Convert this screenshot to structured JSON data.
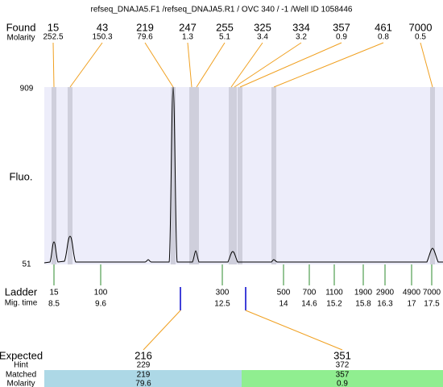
{
  "title": "refseq_DNAJA5.F1 /refseq_DNAJA5.R1 / OVC 340 / -1 /Well ID 1058446",
  "found": {
    "label": "Found",
    "molarity_label": "Molarity",
    "peaks": [
      {
        "size": 15,
        "molarity": 252.5
      },
      {
        "size": 43,
        "molarity": 150.3
      },
      {
        "size": 219,
        "molarity": 79.6
      },
      {
        "size": 247,
        "molarity": 1.3
      },
      {
        "size": 255,
        "molarity": 5.1
      },
      {
        "size": 325,
        "molarity": 3.4
      },
      {
        "size": 334,
        "molarity": 3.2
      },
      {
        "size": 357,
        "molarity": 0.9
      },
      {
        "size": 461,
        "molarity": 0.8
      },
      {
        "size": 7000,
        "molarity": 0.5
      }
    ]
  },
  "axis": {
    "label": "Fluo.",
    "top": 909,
    "bottom": 51
  },
  "ladder": {
    "label": "Ladder",
    "time_label": "Mig. time",
    "peaks": [
      {
        "size": 15,
        "time": 8.5
      },
      {
        "size": 100,
        "time": 9.6
      },
      {
        "size": 300,
        "time": 12.5
      },
      {
        "size": 500,
        "time": 14
      },
      {
        "size": 700,
        "time": 14.6
      },
      {
        "size": 1100,
        "time": 15.2
      },
      {
        "size": 1900,
        "time": 15.8
      },
      {
        "size": 2900,
        "time": 16.3
      },
      {
        "size": 4900,
        "time": 17
      },
      {
        "size": 7000,
        "time": 17.5
      }
    ]
  },
  "expected": {
    "label": "Expected",
    "hint_label": "Hint",
    "matched_label": "Matched",
    "molarity_label": "Molarity",
    "items": [
      {
        "size": 216,
        "hint": 229,
        "matched": 219,
        "molarity": 79.6
      },
      {
        "size": 351,
        "hint": 372,
        "matched": 357,
        "molarity": 0.9
      }
    ]
  }
}
